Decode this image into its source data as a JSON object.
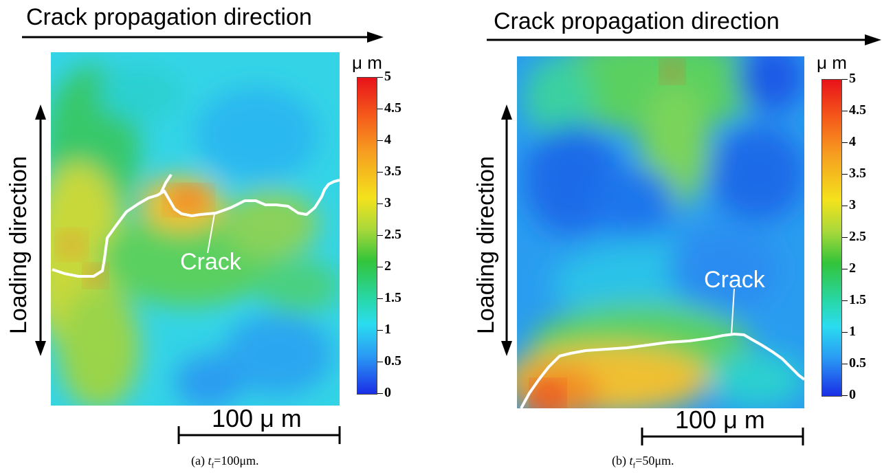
{
  "panels": [
    {
      "propagation_label": "Crack propagation direction",
      "loading_label": "Loading direction",
      "crack_label": "Crack",
      "colorbar": {
        "unit": "μ m",
        "ticks": [
          "5",
          "4.5",
          "4",
          "3.5",
          "3",
          "2.5",
          "2",
          "1.5",
          "1",
          "0.5",
          "0"
        ],
        "colors": [
          "#1a2ee6",
          "#2a9af4",
          "#2adcf0",
          "#28d7a8",
          "#32c43a",
          "#a8d83a",
          "#f4e21c",
          "#f6a020",
          "#f55a1a",
          "#e8121a"
        ]
      },
      "scale_bar_label": "100 μ m",
      "caption": {
        "prefix": "(a) ",
        "var": "t",
        "sub": "f",
        "rest": "=100μm."
      }
    },
    {
      "propagation_label": "Crack propagation direction",
      "loading_label": "Loading direction",
      "crack_label": "Crack",
      "colorbar": {
        "unit": "μ m",
        "ticks": [
          "5",
          "4.5",
          "4",
          "3.5",
          "3",
          "2.5",
          "2",
          "1.5",
          "1",
          "0.5",
          "0"
        ],
        "colors": [
          "#1a2ee6",
          "#2a9af4",
          "#2adcf0",
          "#28d7a8",
          "#32c43a",
          "#a8d83a",
          "#f4e21c",
          "#f6a020",
          "#f55a1a",
          "#e8121a"
        ]
      },
      "scale_bar_label": "100 μ m",
      "caption": {
        "prefix": "(b) ",
        "var": "t",
        "sub": "f",
        "rest": "=50μm."
      }
    }
  ]
}
